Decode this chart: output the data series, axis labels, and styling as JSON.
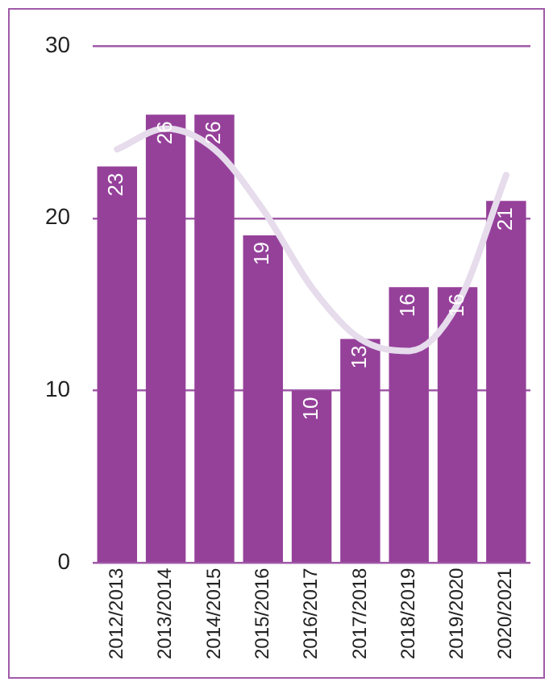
{
  "chart_data": {
    "type": "bar",
    "categories": [
      "2012/2013",
      "2013/2014",
      "2014/2015",
      "2015/2016",
      "2016/2017",
      "2017/2018",
      "2018/2019",
      "2019/2020",
      "2020/2021"
    ],
    "series": [
      {
        "color": "#95419a",
        "values": [
          23,
          26,
          26,
          19,
          10,
          13,
          16,
          16,
          21
        ],
        "value_labels": [
          "23",
          "26",
          "26",
          "19",
          "10",
          "13",
          "16",
          "16",
          "21"
        ]
      },
      {
        "type": "line",
        "color": "#e6dcec",
        "values": [
          24,
          25.2,
          24,
          20.5,
          16,
          13,
          12.3,
          15,
          22.5
        ]
      }
    ],
    "ylim": [
      0,
      30
    ],
    "yticks": [
      0,
      10,
      20,
      30
    ],
    "grid": "y",
    "marker": "none",
    "line_style": "solid"
  }
}
